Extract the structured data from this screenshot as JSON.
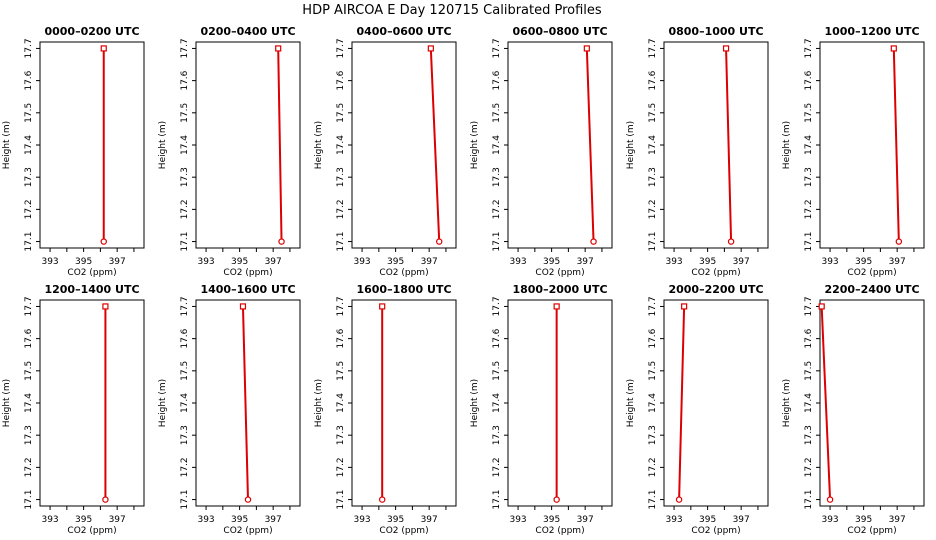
{
  "title": "HDP AIRCOA E  Day 120715  Calibrated Profiles",
  "colors": {
    "line": "#dd0000",
    "axis": "#000000",
    "background": "#ffffff"
  },
  "chart_data": [
    {
      "type": "line",
      "title": "0000–0200 UTC",
      "xlabel": "CO2 (ppm)",
      "ylabel": "Height (m)",
      "xlim": [
        392.4,
        398.6
      ],
      "ylim": [
        17.08,
        17.72
      ],
      "xticks": [
        "393",
        "395",
        "397"
      ],
      "yticks": [
        "17.1",
        "17.2",
        "17.3",
        "17.4",
        "17.5",
        "17.6",
        "17.7"
      ],
      "points": [
        {
          "x": 396.2,
          "y": 17.1
        },
        {
          "x": 396.2,
          "y": 17.7
        }
      ]
    },
    {
      "type": "line",
      "title": "0200–0400 UTC",
      "xlabel": "CO2 (ppm)",
      "ylabel": "Height (m)",
      "xlim": [
        392.4,
        398.6
      ],
      "ylim": [
        17.08,
        17.72
      ],
      "xticks": [
        "393",
        "395",
        "397"
      ],
      "yticks": [
        "17.1",
        "17.2",
        "17.3",
        "17.4",
        "17.5",
        "17.6",
        "17.7"
      ],
      "points": [
        {
          "x": 397.5,
          "y": 17.1
        },
        {
          "x": 397.3,
          "y": 17.7
        }
      ]
    },
    {
      "type": "line",
      "title": "0400–0600 UTC",
      "xlabel": "CO2 (ppm)",
      "ylabel": "Height (m)",
      "xlim": [
        392.4,
        398.6
      ],
      "ylim": [
        17.08,
        17.72
      ],
      "xticks": [
        "393",
        "395",
        "397"
      ],
      "yticks": [
        "17.1",
        "17.2",
        "17.3",
        "17.4",
        "17.5",
        "17.6",
        "17.7"
      ],
      "points": [
        {
          "x": 397.6,
          "y": 17.1
        },
        {
          "x": 397.1,
          "y": 17.7
        }
      ]
    },
    {
      "type": "line",
      "title": "0600–0800 UTC",
      "xlabel": "CO2 (ppm)",
      "ylabel": "Height (m)",
      "xlim": [
        392.4,
        398.6
      ],
      "ylim": [
        17.08,
        17.72
      ],
      "xticks": [
        "393",
        "395",
        "397"
      ],
      "yticks": [
        "17.1",
        "17.2",
        "17.3",
        "17.4",
        "17.5",
        "17.6",
        "17.7"
      ],
      "points": [
        {
          "x": 397.5,
          "y": 17.1
        },
        {
          "x": 397.1,
          "y": 17.7
        }
      ]
    },
    {
      "type": "line",
      "title": "0800–1000 UTC",
      "xlabel": "CO2 (ppm)",
      "ylabel": "Height (m)",
      "xlim": [
        392.4,
        398.6
      ],
      "ylim": [
        17.08,
        17.72
      ],
      "xticks": [
        "393",
        "395",
        "397"
      ],
      "yticks": [
        "17.1",
        "17.2",
        "17.3",
        "17.4",
        "17.5",
        "17.6",
        "17.7"
      ],
      "points": [
        {
          "x": 396.4,
          "y": 17.1
        },
        {
          "x": 396.1,
          "y": 17.7
        }
      ]
    },
    {
      "type": "line",
      "title": "1000–1200 UTC",
      "xlabel": "CO2 (ppm)",
      "ylabel": "Height (m)",
      "xlim": [
        392.4,
        398.6
      ],
      "ylim": [
        17.08,
        17.72
      ],
      "xticks": [
        "393",
        "395",
        "397"
      ],
      "yticks": [
        "17.1",
        "17.2",
        "17.3",
        "17.4",
        "17.5",
        "17.6",
        "17.7"
      ],
      "points": [
        {
          "x": 397.1,
          "y": 17.1
        },
        {
          "x": 396.8,
          "y": 17.7
        }
      ]
    },
    {
      "type": "line",
      "title": "1200–1400 UTC",
      "xlabel": "CO2 (ppm)",
      "ylabel": "Height (m)",
      "xlim": [
        392.4,
        398.6
      ],
      "ylim": [
        17.08,
        17.72
      ],
      "xticks": [
        "393",
        "395",
        "397"
      ],
      "yticks": [
        "17.1",
        "17.2",
        "17.3",
        "17.4",
        "17.5",
        "17.6",
        "17.7"
      ],
      "points": [
        {
          "x": 396.3,
          "y": 17.1
        },
        {
          "x": 396.3,
          "y": 17.7
        }
      ]
    },
    {
      "type": "line",
      "title": "1400–1600 UTC",
      "xlabel": "CO2 (ppm)",
      "ylabel": "Height (m)",
      "xlim": [
        392.4,
        398.6
      ],
      "ylim": [
        17.08,
        17.72
      ],
      "xticks": [
        "393",
        "395",
        "397"
      ],
      "yticks": [
        "17.1",
        "17.2",
        "17.3",
        "17.4",
        "17.5",
        "17.6",
        "17.7"
      ],
      "points": [
        {
          "x": 395.5,
          "y": 17.1
        },
        {
          "x": 395.2,
          "y": 17.7
        }
      ]
    },
    {
      "type": "line",
      "title": "1600–1800 UTC",
      "xlabel": "CO2 (ppm)",
      "ylabel": "Height (m)",
      "xlim": [
        392.4,
        398.6
      ],
      "ylim": [
        17.08,
        17.72
      ],
      "xticks": [
        "393",
        "395",
        "397"
      ],
      "yticks": [
        "17.1",
        "17.2",
        "17.3",
        "17.4",
        "17.5",
        "17.6",
        "17.7"
      ],
      "points": [
        {
          "x": 394.2,
          "y": 17.1
        },
        {
          "x": 394.2,
          "y": 17.7
        }
      ]
    },
    {
      "type": "line",
      "title": "1800–2000 UTC",
      "xlabel": "CO2 (ppm)",
      "ylabel": "Height (m)",
      "xlim": [
        392.4,
        398.6
      ],
      "ylim": [
        17.08,
        17.72
      ],
      "xticks": [
        "393",
        "395",
        "397"
      ],
      "yticks": [
        "17.1",
        "17.2",
        "17.3",
        "17.4",
        "17.5",
        "17.6",
        "17.7"
      ],
      "points": [
        {
          "x": 395.3,
          "y": 17.1
        },
        {
          "x": 395.3,
          "y": 17.7
        }
      ]
    },
    {
      "type": "line",
      "title": "2000–2200 UTC",
      "xlabel": "CO2 (ppm)",
      "ylabel": "Height (m)",
      "xlim": [
        392.4,
        398.6
      ],
      "ylim": [
        17.08,
        17.72
      ],
      "xticks": [
        "393",
        "395",
        "397"
      ],
      "yticks": [
        "17.1",
        "17.2",
        "17.3",
        "17.4",
        "17.5",
        "17.6",
        "17.7"
      ],
      "points": [
        {
          "x": 393.3,
          "y": 17.1
        },
        {
          "x": 393.6,
          "y": 17.7
        }
      ]
    },
    {
      "type": "line",
      "title": "2200–2400 UTC",
      "xlabel": "CO2 (ppm)",
      "ylabel": "Height (m)",
      "xlim": [
        392.4,
        398.6
      ],
      "ylim": [
        17.08,
        17.72
      ],
      "xticks": [
        "393",
        "395",
        "397"
      ],
      "yticks": [
        "17.1",
        "17.2",
        "17.3",
        "17.4",
        "17.5",
        "17.6",
        "17.7"
      ],
      "points": [
        {
          "x": 393.0,
          "y": 17.1
        },
        {
          "x": 392.5,
          "y": 17.7
        }
      ]
    }
  ]
}
